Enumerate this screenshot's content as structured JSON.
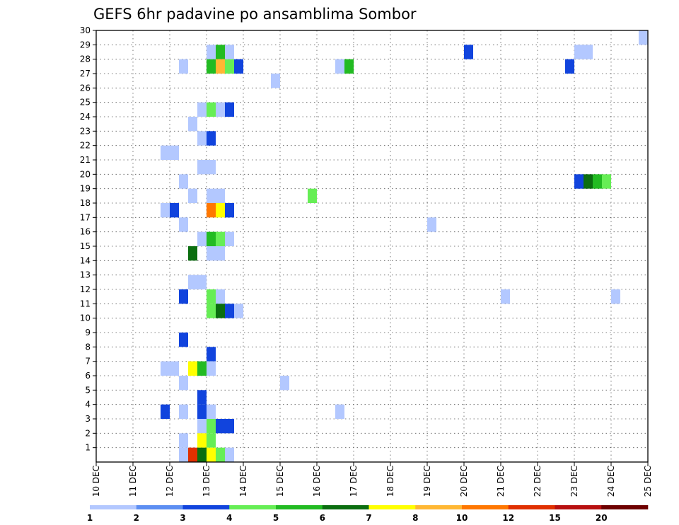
{
  "chart_data": {
    "type": "heatmap",
    "title": "GEFS 6hr padavine po ansamblima Sombor",
    "x_ticks": [
      "10 DEC",
      "11 DEC",
      "12 DEC",
      "13 DEC",
      "14 DEC",
      "15 DEC",
      "16 DEC",
      "17 DEC",
      "18 DEC",
      "19 DEC",
      "20 DEC",
      "21 DEC",
      "22 DEC",
      "23 DEC",
      "24 DEC",
      "25 DEC"
    ],
    "y_ticks": [
      "1",
      "2",
      "3",
      "4",
      "5",
      "6",
      "7",
      "8",
      "9",
      "10",
      "11",
      "12",
      "13",
      "14",
      "15",
      "16",
      "17",
      "18",
      "19",
      "20",
      "21",
      "22",
      "23",
      "24",
      "25",
      "26",
      "27",
      "28",
      "29",
      "30"
    ],
    "xlim": [
      "10 DEC",
      "25 DEC"
    ],
    "ylim": [
      0,
      30
    ],
    "grid": true,
    "colorbar": {
      "boundaries": [
        0,
        1,
        2,
        3,
        4,
        5,
        6,
        7,
        8,
        10,
        12,
        15,
        20
      ],
      "labels": [
        "1",
        "2",
        "3",
        "4",
        "5",
        "6",
        "7",
        "8",
        "10",
        "12",
        "15",
        "20"
      ],
      "colors": [
        "#b3c8ff",
        "#5c8ef2",
        "#1144dd",
        "#66ee55",
        "#22bb22",
        "#0b6e10",
        "#ffff00",
        "#ffb733",
        "#ff7700",
        "#e03000",
        "#b81010",
        "#6e0000"
      ]
    },
    "cells": [
      {
        "m": 30,
        "x": "24 18z",
        "v": 0.7
      },
      {
        "m": 29,
        "x": "13 00z",
        "v": 0.9
      },
      {
        "m": 29,
        "x": "13 06z",
        "v": 4.5
      },
      {
        "m": 29,
        "x": "13 12z",
        "v": 0.9
      },
      {
        "m": 29,
        "x": "20 00z",
        "v": 2.5
      },
      {
        "m": 29,
        "x": "23 00z",
        "v": 0.9
      },
      {
        "m": 29,
        "x": "23 06z",
        "v": 0.9
      },
      {
        "m": 28,
        "x": "12 06z",
        "v": 0.8
      },
      {
        "m": 28,
        "x": "13 00z",
        "v": 4.5
      },
      {
        "m": 28,
        "x": "13 06z",
        "v": 7.5
      },
      {
        "m": 28,
        "x": "13 12z",
        "v": 3.5
      },
      {
        "m": 28,
        "x": "13 18z",
        "v": 2.5
      },
      {
        "m": 28,
        "x": "16 12z",
        "v": 0.8
      },
      {
        "m": 28,
        "x": "16 18z",
        "v": 4.5
      },
      {
        "m": 28,
        "x": "22 18z",
        "v": 2.5
      },
      {
        "m": 27,
        "x": "14 18z",
        "v": 0.8
      },
      {
        "m": 25,
        "x": "12 18z",
        "v": 0.9
      },
      {
        "m": 25,
        "x": "13 00z",
        "v": 3.5
      },
      {
        "m": 25,
        "x": "13 06z",
        "v": 0.9
      },
      {
        "m": 25,
        "x": "13 12z",
        "v": 2.5
      },
      {
        "m": 24,
        "x": "12 12z",
        "v": 0.8
      },
      {
        "m": 23,
        "x": "12 18z",
        "v": 0.9
      },
      {
        "m": 23,
        "x": "13 00z",
        "v": 2.5
      },
      {
        "m": 22,
        "x": "11 18z",
        "v": 0.9
      },
      {
        "m": 22,
        "x": "12 00z",
        "v": 0.9
      },
      {
        "m": 21,
        "x": "12 18z",
        "v": 0.9
      },
      {
        "m": 21,
        "x": "13 00z",
        "v": 0.9
      },
      {
        "m": 20,
        "x": "12 06z",
        "v": 0.8
      },
      {
        "m": 20,
        "x": "23 00z",
        "v": 2.5
      },
      {
        "m": 20,
        "x": "23 06z",
        "v": 5.5
      },
      {
        "m": 20,
        "x": "23 12z",
        "v": 4.5
      },
      {
        "m": 20,
        "x": "23 18z",
        "v": 3.5
      },
      {
        "m": 19,
        "x": "12 12z",
        "v": 0.8
      },
      {
        "m": 19,
        "x": "13 00z",
        "v": 0.9
      },
      {
        "m": 19,
        "x": "13 06z",
        "v": 0.9
      },
      {
        "m": 19,
        "x": "15 18z",
        "v": 3.5
      },
      {
        "m": 18,
        "x": "11 18z",
        "v": 0.9
      },
      {
        "m": 18,
        "x": "12 00z",
        "v": 2.5
      },
      {
        "m": 18,
        "x": "13 00z",
        "v": 9.0
      },
      {
        "m": 18,
        "x": "13 06z",
        "v": 6.5
      },
      {
        "m": 18,
        "x": "13 12z",
        "v": 2.5
      },
      {
        "m": 17,
        "x": "12 06z",
        "v": 0.8
      },
      {
        "m": 17,
        "x": "19 00z",
        "v": 0.8
      },
      {
        "m": 16,
        "x": "12 18z",
        "v": 0.9
      },
      {
        "m": 16,
        "x": "13 00z",
        "v": 4.5
      },
      {
        "m": 16,
        "x": "13 06z",
        "v": 3.5
      },
      {
        "m": 16,
        "x": "13 12z",
        "v": 0.9
      },
      {
        "m": 15,
        "x": "12 12z",
        "v": 5.5
      },
      {
        "m": 15,
        "x": "13 00z",
        "v": 0.9
      },
      {
        "m": 15,
        "x": "13 06z",
        "v": 0.9
      },
      {
        "m": 13,
        "x": "12 12z",
        "v": 0.9
      },
      {
        "m": 13,
        "x": "12 18z",
        "v": 0.9
      },
      {
        "m": 12,
        "x": "12 06z",
        "v": 2.5
      },
      {
        "m": 12,
        "x": "13 00z",
        "v": 3.5
      },
      {
        "m": 12,
        "x": "13 06z",
        "v": 0.9
      },
      {
        "m": 12,
        "x": "21 00z",
        "v": 0.8
      },
      {
        "m": 12,
        "x": "24 00z",
        "v": 0.8
      },
      {
        "m": 11,
        "x": "13 00z",
        "v": 3.5
      },
      {
        "m": 11,
        "x": "13 06z",
        "v": 5.5
      },
      {
        "m": 11,
        "x": "13 12z",
        "v": 2.5
      },
      {
        "m": 11,
        "x": "13 18z",
        "v": 0.8
      },
      {
        "m": 9,
        "x": "12 06z",
        "v": 2.5
      },
      {
        "m": 8,
        "x": "13 00z",
        "v": 2.5
      },
      {
        "m": 7,
        "x": "11 18z",
        "v": 0.9
      },
      {
        "m": 7,
        "x": "12 00z",
        "v": 0.9
      },
      {
        "m": 7,
        "x": "12 12z",
        "v": 6.5
      },
      {
        "m": 7,
        "x": "12 18z",
        "v": 4.5
      },
      {
        "m": 7,
        "x": "13 00z",
        "v": 0.9
      },
      {
        "m": 6,
        "x": "12 06z",
        "v": 0.8
      },
      {
        "m": 6,
        "x": "15 00z",
        "v": 0.8
      },
      {
        "m": 5,
        "x": "12 18z",
        "v": 2.5
      },
      {
        "m": 4,
        "x": "11 18z",
        "v": 2.5
      },
      {
        "m": 4,
        "x": "12 06z",
        "v": 0.8
      },
      {
        "m": 4,
        "x": "12 18z",
        "v": 2.5
      },
      {
        "m": 4,
        "x": "13 00z",
        "v": 0.9
      },
      {
        "m": 4,
        "x": "16 12z",
        "v": 0.8
      },
      {
        "m": 3,
        "x": "12 18z",
        "v": 0.9
      },
      {
        "m": 3,
        "x": "13 00z",
        "v": 3.5
      },
      {
        "m": 3,
        "x": "13 06z",
        "v": 2.5
      },
      {
        "m": 3,
        "x": "13 12z",
        "v": 2.5
      },
      {
        "m": 2,
        "x": "12 06z",
        "v": 0.8
      },
      {
        "m": 2,
        "x": "12 18z",
        "v": 6.5
      },
      {
        "m": 2,
        "x": "13 00z",
        "v": 3.5
      },
      {
        "m": 1,
        "x": "12 06z",
        "v": 0.8
      },
      {
        "m": 1,
        "x": "12 12z",
        "v": 11.0
      },
      {
        "m": 1,
        "x": "12 18z",
        "v": 5.5
      },
      {
        "m": 1,
        "x": "13 00z",
        "v": 6.5
      },
      {
        "m": 1,
        "x": "13 06z",
        "v": 3.5
      },
      {
        "m": 1,
        "x": "13 12z",
        "v": 0.9
      }
    ]
  }
}
